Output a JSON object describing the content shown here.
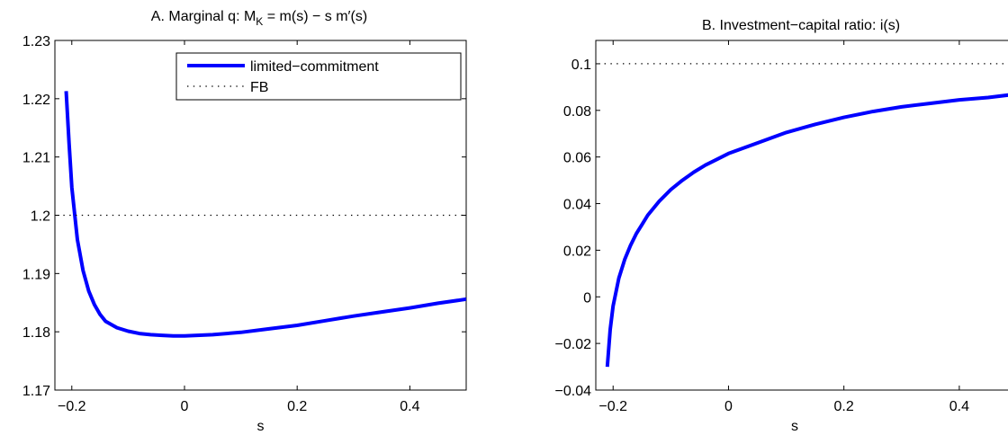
{
  "chart_data": [
    {
      "type": "line",
      "title": "A. Marginal q: M",
      "title_sub": "K",
      "title_tail": " = m(s) − s m′(s)",
      "xlabel": "s",
      "ylabel": "",
      "xlim": [
        -0.23,
        0.5
      ],
      "ylim": [
        1.17,
        1.23
      ],
      "xticks": [
        -0.2,
        0,
        0.2,
        0.4
      ],
      "xtick_labels": [
        "−0.2",
        "0",
        "0.2",
        "0.4"
      ],
      "yticks": [
        1.17,
        1.18,
        1.19,
        1.2,
        1.21,
        1.22,
        1.23
      ],
      "ytick_labels": [
        "1.17",
        "1.18",
        "1.19",
        "1.2",
        "1.21",
        "1.22",
        "1.23"
      ],
      "legend": {
        "position": "top-right",
        "entries": [
          "limited−commitment",
          "FB"
        ]
      },
      "series": [
        {
          "name": "limited−commitment",
          "color": "#0000ff",
          "style": "solid",
          "x": [
            -0.21,
            -0.205,
            -0.2,
            -0.19,
            -0.18,
            -0.17,
            -0.16,
            -0.15,
            -0.14,
            -0.12,
            -0.1,
            -0.08,
            -0.06,
            -0.04,
            -0.02,
            0,
            0.05,
            0.1,
            0.15,
            0.2,
            0.25,
            0.3,
            0.35,
            0.4,
            0.45,
            0.5
          ],
          "y": [
            1.2213,
            1.2125,
            1.2048,
            1.1958,
            1.1905,
            1.187,
            1.1847,
            1.183,
            1.1818,
            1.1807,
            1.1801,
            1.1797,
            1.1795,
            1.1794,
            1.1793,
            1.1793,
            1.1795,
            1.1799,
            1.1805,
            1.1811,
            1.1819,
            1.1827,
            1.1834,
            1.1841,
            1.1849,
            1.1856
          ]
        },
        {
          "name": "FB",
          "color": "#000000",
          "style": "dotted",
          "x": [
            -0.215,
            0.5
          ],
          "y": [
            1.2,
            1.2
          ]
        }
      ]
    },
    {
      "type": "line",
      "title": "B. Investment−capital ratio: i(s)",
      "xlabel": "s",
      "ylabel": "",
      "xlim": [
        -0.23,
        0.5
      ],
      "ylim": [
        -0.04,
        0.11
      ],
      "xticks": [
        -0.2,
        0,
        0.2,
        0.4
      ],
      "xtick_labels": [
        "−0.2",
        "0",
        "0.2",
        "0.4"
      ],
      "yticks": [
        -0.04,
        -0.02,
        0,
        0.02,
        0.04,
        0.06,
        0.08,
        0.1
      ],
      "ytick_labels": [
        "−0.04",
        "−0.02",
        "0",
        "0.02",
        "0.04",
        "0.06",
        "0.08",
        "0.1"
      ],
      "series": [
        {
          "name": "limited−commitment",
          "color": "#0000ff",
          "style": "solid",
          "x": [
            -0.21,
            -0.205,
            -0.2,
            -0.19,
            -0.18,
            -0.17,
            -0.16,
            -0.15,
            -0.14,
            -0.12,
            -0.1,
            -0.08,
            -0.06,
            -0.04,
            -0.02,
            0,
            0.05,
            0.1,
            0.15,
            0.2,
            0.25,
            0.3,
            0.35,
            0.4,
            0.45,
            0.5
          ],
          "y": [
            -0.03,
            -0.014,
            -0.004,
            0.008,
            0.016,
            0.022,
            0.027,
            0.031,
            0.035,
            0.041,
            0.046,
            0.05,
            0.0535,
            0.0565,
            0.059,
            0.0615,
            0.066,
            0.0705,
            0.074,
            0.077,
            0.0795,
            0.0815,
            0.083,
            0.0845,
            0.0855,
            0.087
          ]
        },
        {
          "name": "FB",
          "color": "#000000",
          "style": "dotted",
          "x": [
            -0.215,
            0.5
          ],
          "y": [
            0.1,
            0.1
          ]
        }
      ]
    }
  ]
}
